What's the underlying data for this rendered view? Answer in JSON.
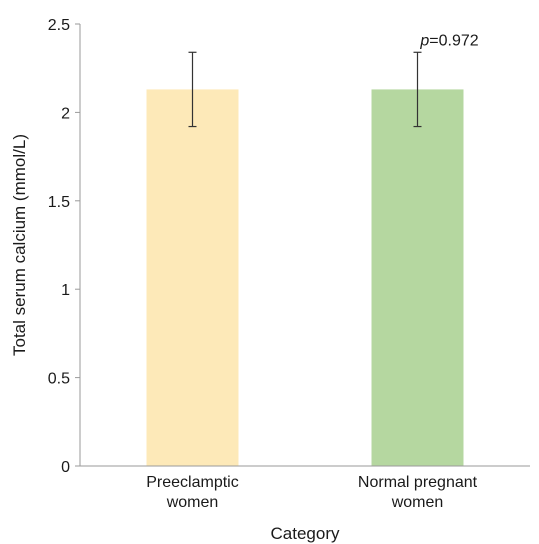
{
  "chart_data": {
    "type": "bar",
    "categories": [
      [
        "Preeclamptic",
        "women"
      ],
      [
        "Normal pregnant",
        "women"
      ]
    ],
    "values": [
      2.13,
      2.13
    ],
    "error_low": [
      1.92,
      1.92
    ],
    "error_high": [
      2.34,
      2.34
    ],
    "bar_colors": [
      "#fde9b8",
      "#b5d7a0"
    ],
    "xlabel": "Category",
    "ylabel": "Total serum calcium (mmol/L)",
    "ylim": [
      0,
      2.5
    ],
    "yticks": [
      0,
      0.5,
      1,
      1.5,
      2,
      2.5
    ],
    "ytick_labels": [
      "0",
      "0.5",
      "1",
      "1.5",
      "2",
      "2.5"
    ],
    "grid": false,
    "annotation": {
      "italic": "p",
      "text": "=0.972",
      "category_index": 1
    }
  }
}
